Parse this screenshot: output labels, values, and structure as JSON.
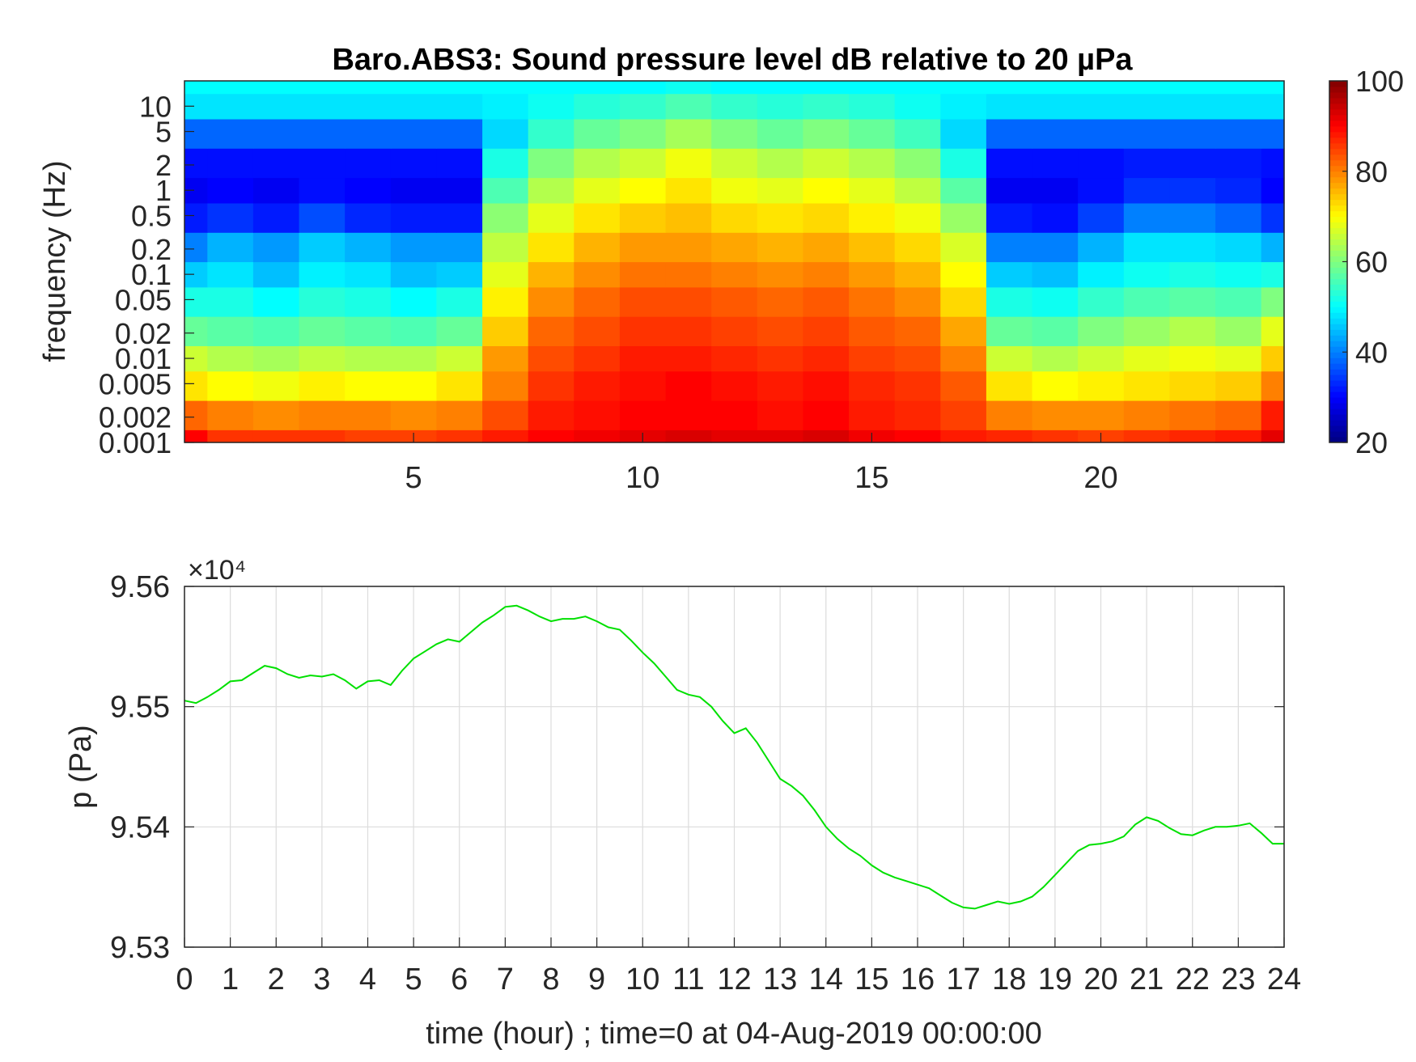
{
  "chart_data": [
    {
      "type": "heatmap",
      "title": "Baro.ABS3: Sound pressure level dB relative to 20 µPa",
      "ylabel": "frequency (Hz)",
      "xlabel": "",
      "xlim": [
        0,
        24
      ],
      "x_ticks": [
        5,
        10,
        15,
        20
      ],
      "x_tick_labels": [
        "5",
        "10",
        "15",
        "20"
      ],
      "yscale": "log",
      "ylim": [
        0.001,
        20
      ],
      "y_ticks": [
        0.001,
        0.002,
        0.005,
        0.01,
        0.02,
        0.05,
        0.1,
        0.2,
        0.5,
        1,
        2,
        5,
        10
      ],
      "y_tick_labels": [
        "0.001",
        "0.002",
        "0.005",
        "0.01",
        "0.02",
        "0.05",
        "0.1",
        "0.2",
        "0.5",
        "1",
        "2",
        "5",
        "10"
      ],
      "colormap": "jet",
      "clim": [
        20,
        100
      ],
      "colorbar_ticks": [
        20,
        40,
        60,
        80,
        100
      ],
      "colorbar_tick_labels": [
        "20",
        "40",
        "60",
        "80",
        "100"
      ],
      "time_hours": [
        0,
        1,
        2,
        3,
        4,
        5,
        6,
        7,
        8,
        9,
        10,
        11,
        12,
        13,
        14,
        15,
        16,
        17,
        18,
        19,
        20,
        21,
        22,
        23,
        24
      ],
      "frequency_hz": [
        0.001,
        0.002,
        0.005,
        0.01,
        0.02,
        0.05,
        0.1,
        0.2,
        0.5,
        1,
        2,
        5,
        10,
        20
      ],
      "level_db_rows": [
        [
          90,
          86,
          86,
          86,
          85,
          85,
          86,
          88,
          90,
          91,
          92,
          93,
          92,
          92,
          93,
          91,
          90,
          88,
          87,
          86,
          85,
          86,
          87,
          88,
          92
        ],
        [
          82,
          80,
          79,
          80,
          80,
          79,
          80,
          84,
          88,
          89,
          90,
          90,
          90,
          89,
          90,
          88,
          87,
          85,
          80,
          79,
          79,
          80,
          81,
          82,
          88
        ],
        [
          72,
          70,
          69,
          71,
          70,
          70,
          72,
          80,
          86,
          88,
          89,
          90,
          89,
          88,
          89,
          87,
          86,
          83,
          72,
          70,
          71,
          72,
          73,
          74,
          80
        ],
        [
          66,
          64,
          63,
          65,
          64,
          64,
          66,
          78,
          84,
          86,
          88,
          88,
          87,
          86,
          87,
          85,
          84,
          80,
          66,
          64,
          66,
          68,
          69,
          68,
          74
        ],
        [
          58,
          57,
          56,
          58,
          57,
          56,
          58,
          74,
          82,
          84,
          86,
          86,
          85,
          84,
          85,
          83,
          82,
          77,
          58,
          57,
          60,
          62,
          64,
          62,
          68
        ],
        [
          52,
          52,
          50,
          53,
          52,
          50,
          52,
          71,
          79,
          82,
          84,
          84,
          83,
          82,
          83,
          81,
          79,
          73,
          52,
          51,
          54,
          56,
          57,
          56,
          60
        ],
        [
          46,
          48,
          45,
          49,
          48,
          45,
          46,
          68,
          76,
          79,
          81,
          81,
          80,
          79,
          80,
          78,
          76,
          70,
          46,
          45,
          49,
          51,
          52,
          51,
          52
        ],
        [
          40,
          44,
          42,
          46,
          44,
          42,
          42,
          65,
          72,
          76,
          78,
          78,
          77,
          76,
          77,
          75,
          73,
          67,
          40,
          40,
          44,
          48,
          48,
          47,
          44
        ],
        [
          32,
          34,
          32,
          36,
          33,
          32,
          32,
          61,
          68,
          72,
          74,
          75,
          73,
          72,
          73,
          71,
          69,
          62,
          32,
          31,
          35,
          40,
          40,
          38,
          34
        ],
        [
          29,
          30,
          29,
          31,
          30,
          29,
          29,
          56,
          64,
          68,
          70,
          72,
          69,
          68,
          70,
          68,
          65,
          57,
          29,
          29,
          31,
          34,
          34,
          33,
          30
        ],
        [
          31,
          31,
          31,
          31,
          31,
          31,
          31,
          52,
          60,
          64,
          66,
          69,
          66,
          64,
          66,
          64,
          61,
          52,
          31,
          31,
          31,
          32,
          32,
          32,
          31
        ],
        [
          38,
          38,
          38,
          38,
          38,
          38,
          38,
          47,
          54,
          58,
          60,
          63,
          60,
          58,
          60,
          58,
          55,
          47,
          38,
          38,
          38,
          38,
          38,
          38,
          38
        ],
        [
          48,
          48,
          48,
          48,
          48,
          48,
          48,
          49,
          51,
          53,
          54,
          56,
          54,
          53,
          54,
          53,
          51,
          49,
          48,
          48,
          48,
          48,
          48,
          48,
          48
        ],
        [
          50,
          50,
          50,
          50,
          50,
          50,
          50,
          50,
          50,
          50,
          50,
          51,
          50,
          50,
          50,
          50,
          50,
          50,
          50,
          50,
          50,
          50,
          50,
          50,
          50
        ]
      ]
    },
    {
      "type": "line",
      "title": "",
      "xlabel": "time (hour) ; time=0 at 04-Aug-2019 00:00:00",
      "ylabel": "p (Pa)",
      "xlim": [
        0,
        24
      ],
      "ylim": [
        95300,
        95600
      ],
      "x_ticks": [
        0,
        1,
        2,
        3,
        4,
        5,
        6,
        7,
        8,
        9,
        10,
        11,
        12,
        13,
        14,
        15,
        16,
        17,
        18,
        19,
        20,
        21,
        22,
        23,
        24
      ],
      "x_tick_labels": [
        "0",
        "1",
        "2",
        "3",
        "4",
        "5",
        "6",
        "7",
        "8",
        "9",
        "10",
        "11",
        "12",
        "13",
        "14",
        "15",
        "16",
        "17",
        "18",
        "19",
        "20",
        "21",
        "22",
        "23",
        "24"
      ],
      "y_ticks": [
        95300,
        95400,
        95500,
        95600
      ],
      "y_tick_labels": [
        "9.53",
        "9.54",
        "9.55",
        "9.56"
      ],
      "y_exponent_label": "×10⁴",
      "grid": true,
      "color": "#00e000",
      "series": [
        {
          "x": [
            0,
            0.25,
            0.5,
            0.75,
            1,
            1.25,
            1.5,
            1.75,
            2,
            2.25,
            2.5,
            2.75,
            3,
            3.25,
            3.5,
            3.75,
            4,
            4.25,
            4.5,
            4.75,
            5,
            5.25,
            5.5,
            5.75,
            6,
            6.25,
            6.5,
            6.75,
            7,
            7.25,
            7.5,
            7.75,
            8,
            8.25,
            8.5,
            8.75,
            9,
            9.25,
            9.5,
            9.75,
            10,
            10.25,
            10.5,
            10.75,
            11,
            11.25,
            11.5,
            11.75,
            12,
            12.25,
            12.5,
            12.75,
            13,
            13.25,
            13.5,
            13.75,
            14,
            14.25,
            14.5,
            14.75,
            15,
            15.25,
            15.5,
            15.75,
            16,
            16.25,
            16.5,
            16.75,
            17,
            17.25,
            17.5,
            17.75,
            18,
            18.25,
            18.5,
            18.75,
            19,
            19.25,
            19.5,
            19.75,
            20,
            20.25,
            20.5,
            20.75,
            21,
            21.25,
            21.5,
            21.75,
            22,
            22.25,
            22.5,
            22.75,
            23,
            23.25,
            23.5,
            23.75,
            24
          ],
          "y": [
            95505,
            95503,
            95508,
            95514,
            95521,
            95522,
            95528,
            95534,
            95532,
            95527,
            95524,
            95526,
            95525,
            95527,
            95522,
            95515,
            95521,
            95522,
            95518,
            95530,
            95540,
            95546,
            95552,
            95556,
            95554,
            95562,
            95570,
            95576,
            95583,
            95584,
            95580,
            95575,
            95571,
            95573,
            95573,
            95575,
            95571,
            95566,
            95564,
            95555,
            95545,
            95536,
            95525,
            95514,
            95510,
            95508,
            95500,
            95488,
            95478,
            95482,
            95470,
            95455,
            95440,
            95434,
            95426,
            95414,
            95400,
            95390,
            95382,
            95376,
            95368,
            95362,
            95358,
            95355,
            95352,
            95349,
            95343,
            95337,
            95333,
            95332,
            95335,
            95338,
            95336,
            95338,
            95342,
            95350,
            95360,
            95370,
            95380,
            95385,
            95386,
            95388,
            95392,
            95402,
            95408,
            95405,
            95399,
            95394,
            95393,
            95397,
            95400,
            95400,
            95401,
            95403,
            95395,
            95386,
            95386
          ]
        }
      ]
    }
  ]
}
